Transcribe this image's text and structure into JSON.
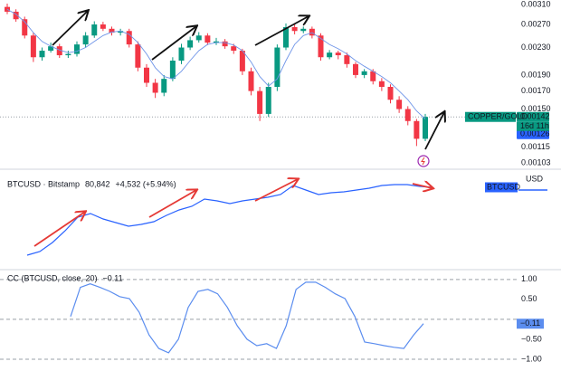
{
  "chart_data": [
    {
      "type": "candlestick",
      "symbol": "COPPER/GOLD",
      "countdown": "16d 11h",
      "log": true,
      "grid": false,
      "up_color": "#089981",
      "down_color": "#f23645",
      "ma_color": "#6f95e8",
      "ylim": [
        0.001,
        0.0032
      ],
      "yticks": [
        {
          "value": 0.0031,
          "label": "0.00310"
        },
        {
          "value": 0.0027,
          "label": "0.00270"
        },
        {
          "value": 0.0023,
          "label": "0.00230"
        },
        {
          "value": 0.0019,
          "label": "0.00190"
        },
        {
          "value": 0.0017,
          "label": "0.00170"
        },
        {
          "value": 0.0015,
          "label": "0.00150"
        },
        {
          "value": 0.00115,
          "label": "0.00115"
        },
        {
          "value": 0.00103,
          "label": "0.00103"
        }
      ],
      "price_tags": [
        {
          "value": 0.00142,
          "label": "0.00142",
          "color": "#089981"
        },
        {
          "value": 0.00126,
          "label": "0.00126",
          "color": "#2962ff"
        }
      ],
      "open": [
        0.00305,
        0.00295,
        0.0028,
        0.0025,
        0.00215,
        0.00225,
        0.00232,
        0.00218,
        0.0022,
        0.00235,
        0.0025,
        0.0027,
        0.00262,
        0.00255,
        0.00258,
        0.00235,
        0.002,
        0.0018,
        0.00168,
        0.00185,
        0.0021,
        0.0023,
        0.00242,
        0.0025,
        0.00238,
        0.0024,
        0.00232,
        0.00225,
        0.00195,
        0.0017,
        0.00145,
        0.00175,
        0.0023,
        0.00265,
        0.00258,
        0.00262,
        0.0025,
        0.00215,
        0.00222,
        0.00218,
        0.00205,
        0.0019,
        0.00195,
        0.00182,
        0.00175,
        0.0016,
        0.0015,
        0.00138,
        0.00122
      ],
      "high": [
        0.00312,
        0.003,
        0.00285,
        0.00255,
        0.0023,
        0.00238,
        0.00236,
        0.00225,
        0.0024,
        0.00256,
        0.00276,
        0.00275,
        0.00266,
        0.00262,
        0.00262,
        0.0024,
        0.00205,
        0.00185,
        0.0019,
        0.00215,
        0.00236,
        0.00248,
        0.00256,
        0.00254,
        0.00246,
        0.00244,
        0.00236,
        0.00228,
        0.002,
        0.00175,
        0.0018,
        0.00235,
        0.00272,
        0.0027,
        0.00266,
        0.00266,
        0.00254,
        0.00226,
        0.00225,
        0.00222,
        0.00208,
        0.00198,
        0.00198,
        0.00186,
        0.00178,
        0.00164,
        0.00153,
        0.0014,
        0.00145
      ],
      "low": [
        0.0029,
        0.00275,
        0.00245,
        0.00208,
        0.0021,
        0.00222,
        0.00214,
        0.00214,
        0.00216,
        0.0023,
        0.00246,
        0.00258,
        0.0025,
        0.0025,
        0.0023,
        0.00195,
        0.00175,
        0.00162,
        0.00164,
        0.00182,
        0.00205,
        0.00226,
        0.00238,
        0.00234,
        0.00234,
        0.00228,
        0.0022,
        0.0019,
        0.00165,
        0.00138,
        0.00142,
        0.0017,
        0.00226,
        0.00252,
        0.00254,
        0.00245,
        0.0021,
        0.00212,
        0.00212,
        0.002,
        0.00186,
        0.00186,
        0.00178,
        0.0017,
        0.00156,
        0.00146,
        0.00134,
        0.00116,
        0.0012
      ],
      "close": [
        0.00295,
        0.0028,
        0.0025,
        0.00215,
        0.00225,
        0.00232,
        0.00218,
        0.0022,
        0.00235,
        0.0025,
        0.0027,
        0.00262,
        0.00255,
        0.00258,
        0.00235,
        0.002,
        0.0018,
        0.00168,
        0.00185,
        0.0021,
        0.0023,
        0.00242,
        0.0025,
        0.00238,
        0.0024,
        0.00232,
        0.00225,
        0.00195,
        0.0017,
        0.00145,
        0.00175,
        0.0023,
        0.00265,
        0.00258,
        0.00262,
        0.0025,
        0.00215,
        0.00222,
        0.00218,
        0.00205,
        0.0019,
        0.00195,
        0.00182,
        0.00175,
        0.0016,
        0.0015,
        0.00138,
        0.00122,
        0.00142
      ],
      "ma": [
        0.003,
        0.0029,
        0.00275,
        0.00255,
        0.0024,
        0.00232,
        0.00226,
        0.00222,
        0.00224,
        0.0023,
        0.0024,
        0.0025,
        0.00256,
        0.00258,
        0.00252,
        0.00238,
        0.0022,
        0.002,
        0.00188,
        0.00185,
        0.00195,
        0.0021,
        0.00225,
        0.00235,
        0.00238,
        0.00238,
        0.00234,
        0.00225,
        0.00208,
        0.00188,
        0.00176,
        0.00185,
        0.0021,
        0.00235,
        0.0025,
        0.00255,
        0.00245,
        0.00235,
        0.00228,
        0.0022,
        0.0021,
        0.00202,
        0.00195,
        0.00188,
        0.0018,
        0.0017,
        0.0016,
        0.00148,
        0.0014
      ]
    },
    {
      "type": "line",
      "title": "BTCUSD · Bitstamp",
      "last": {
        "value": 80842,
        "label": "80,842"
      },
      "change": "+4,532 (+5.94%)",
      "currency": "USD",
      "tag": "BTCUSD",
      "color": "#2962ff",
      "ylim": [
        10000,
        90000
      ],
      "values": [
        18300,
        21700,
        30000,
        40800,
        53300,
        56700,
        51700,
        48300,
        45000,
        46700,
        49200,
        55000,
        60000,
        63300,
        70000,
        68300,
        65800,
        68300,
        70000,
        71700,
        74200,
        82500,
        78300,
        74200,
        75800,
        76700,
        78300,
        80000,
        82500,
        83300,
        83300,
        81700,
        80842
      ]
    },
    {
      "type": "line",
      "title": "CC (BTCUSD, close, 20)",
      "last": {
        "value": -0.11,
        "label": "−0.11"
      },
      "color": "#5b8def",
      "ylim": [
        -1.25,
        1.2
      ],
      "yticks": [
        {
          "value": 1,
          "label": "1.00"
        },
        {
          "value": 0.5,
          "label": "0.50"
        },
        {
          "value": -0.5,
          "label": "−0.50"
        },
        {
          "value": -1,
          "label": "−1.00"
        }
      ],
      "levels": [
        1,
        0,
        -1
      ],
      "values": [
        0.07,
        0.8,
        0.89,
        0.8,
        0.7,
        0.57,
        0.52,
        0.18,
        -0.39,
        -0.73,
        -0.84,
        -0.5,
        0.3,
        0.7,
        0.75,
        0.64,
        0.3,
        -0.16,
        -0.5,
        -0.66,
        -0.61,
        -0.73,
        -0.16,
        0.75,
        0.93,
        0.93,
        0.8,
        0.64,
        0.52,
        0.07,
        -0.57,
        -0.61,
        -0.66,
        -0.7,
        -0.73,
        -0.39,
        -0.11
      ]
    }
  ]
}
